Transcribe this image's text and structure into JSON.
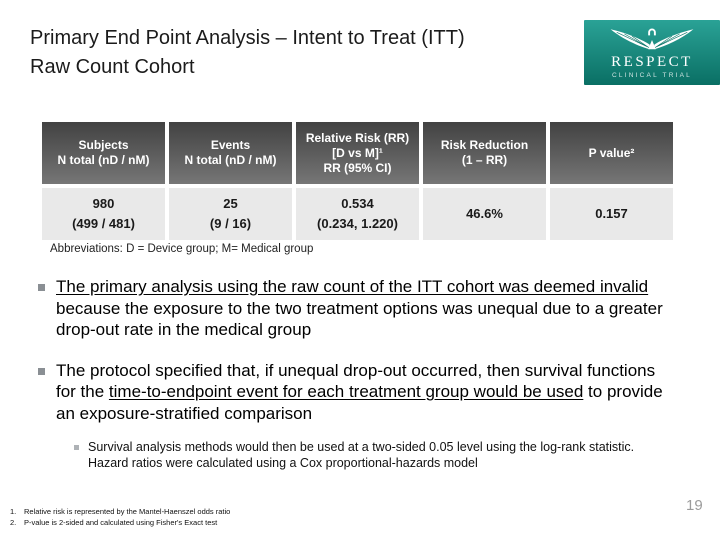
{
  "title": {
    "line1": "Primary End Point Analysis – Intent to Treat (ITT)",
    "line2": "Raw Count Cohort"
  },
  "logo": {
    "name": "RESPECT",
    "subtitle": "CLINICAL TRIAL",
    "bird_icon": "bird-wings-icon"
  },
  "table": {
    "columns": [
      {
        "header": [
          "Subjects",
          "N total (nD / nM)"
        ],
        "value": [
          "980",
          "(499 / 481)"
        ]
      },
      {
        "header": [
          "Events",
          "N total (nD / nM)"
        ],
        "value": [
          "25",
          "(9 / 16)"
        ]
      },
      {
        "header": [
          "Relative Risk (RR)",
          "[D vs M]¹",
          "RR (95% CI)"
        ],
        "value": [
          "0.534",
          "(0.234, 1.220)"
        ]
      },
      {
        "header": [
          "Risk Reduction",
          "(1 – RR)"
        ],
        "value": [
          "46.6%"
        ]
      },
      {
        "header": [
          "P value²"
        ],
        "value": [
          "0.157"
        ]
      }
    ]
  },
  "abbreviations": "Abbreviations: D = Device group; M= Medical group",
  "bullets": [
    {
      "level": 1,
      "segments": [
        {
          "text": "The primary analysis using the raw count of the ITT cohort was deemed invalid",
          "underline": true
        },
        {
          "text": " because the exposure to the two treatment options was unequal due to a greater drop-out rate in the medical group",
          "underline": false
        }
      ]
    },
    {
      "level": 1,
      "segments": [
        {
          "text": "The protocol specified that, if unequal drop-out occurred, then survival functions for the ",
          "underline": false
        },
        {
          "text": "time-to-endpoint event for each treatment group would be used",
          "underline": true
        },
        {
          "text": " to provide an exposure-stratified comparison",
          "underline": false
        }
      ]
    },
    {
      "level": 2,
      "segments": [
        {
          "text": "Survival analysis methods would then be used at a two-sided 0.05 level using the log-rank statistic. Hazard ratios were calculated using a Cox proportional-hazards model",
          "underline": false
        }
      ]
    }
  ],
  "footnotes": [
    {
      "num": "1.",
      "text": "Relative risk is represented by the Mantel-Haenszel odds ratio"
    },
    {
      "num": "2.",
      "text": "P-value is 2-sided and calculated using Fisher's Exact test"
    }
  ],
  "page_number": "19",
  "colors": {
    "logo_teal_top": "#2aa296",
    "logo_teal_bottom": "#0a6f64",
    "table_header_top": "#424242",
    "table_header_bottom": "#767676",
    "table_cell_bg": "#e9e9e9",
    "page_number_gray": "#9b9b9b"
  }
}
